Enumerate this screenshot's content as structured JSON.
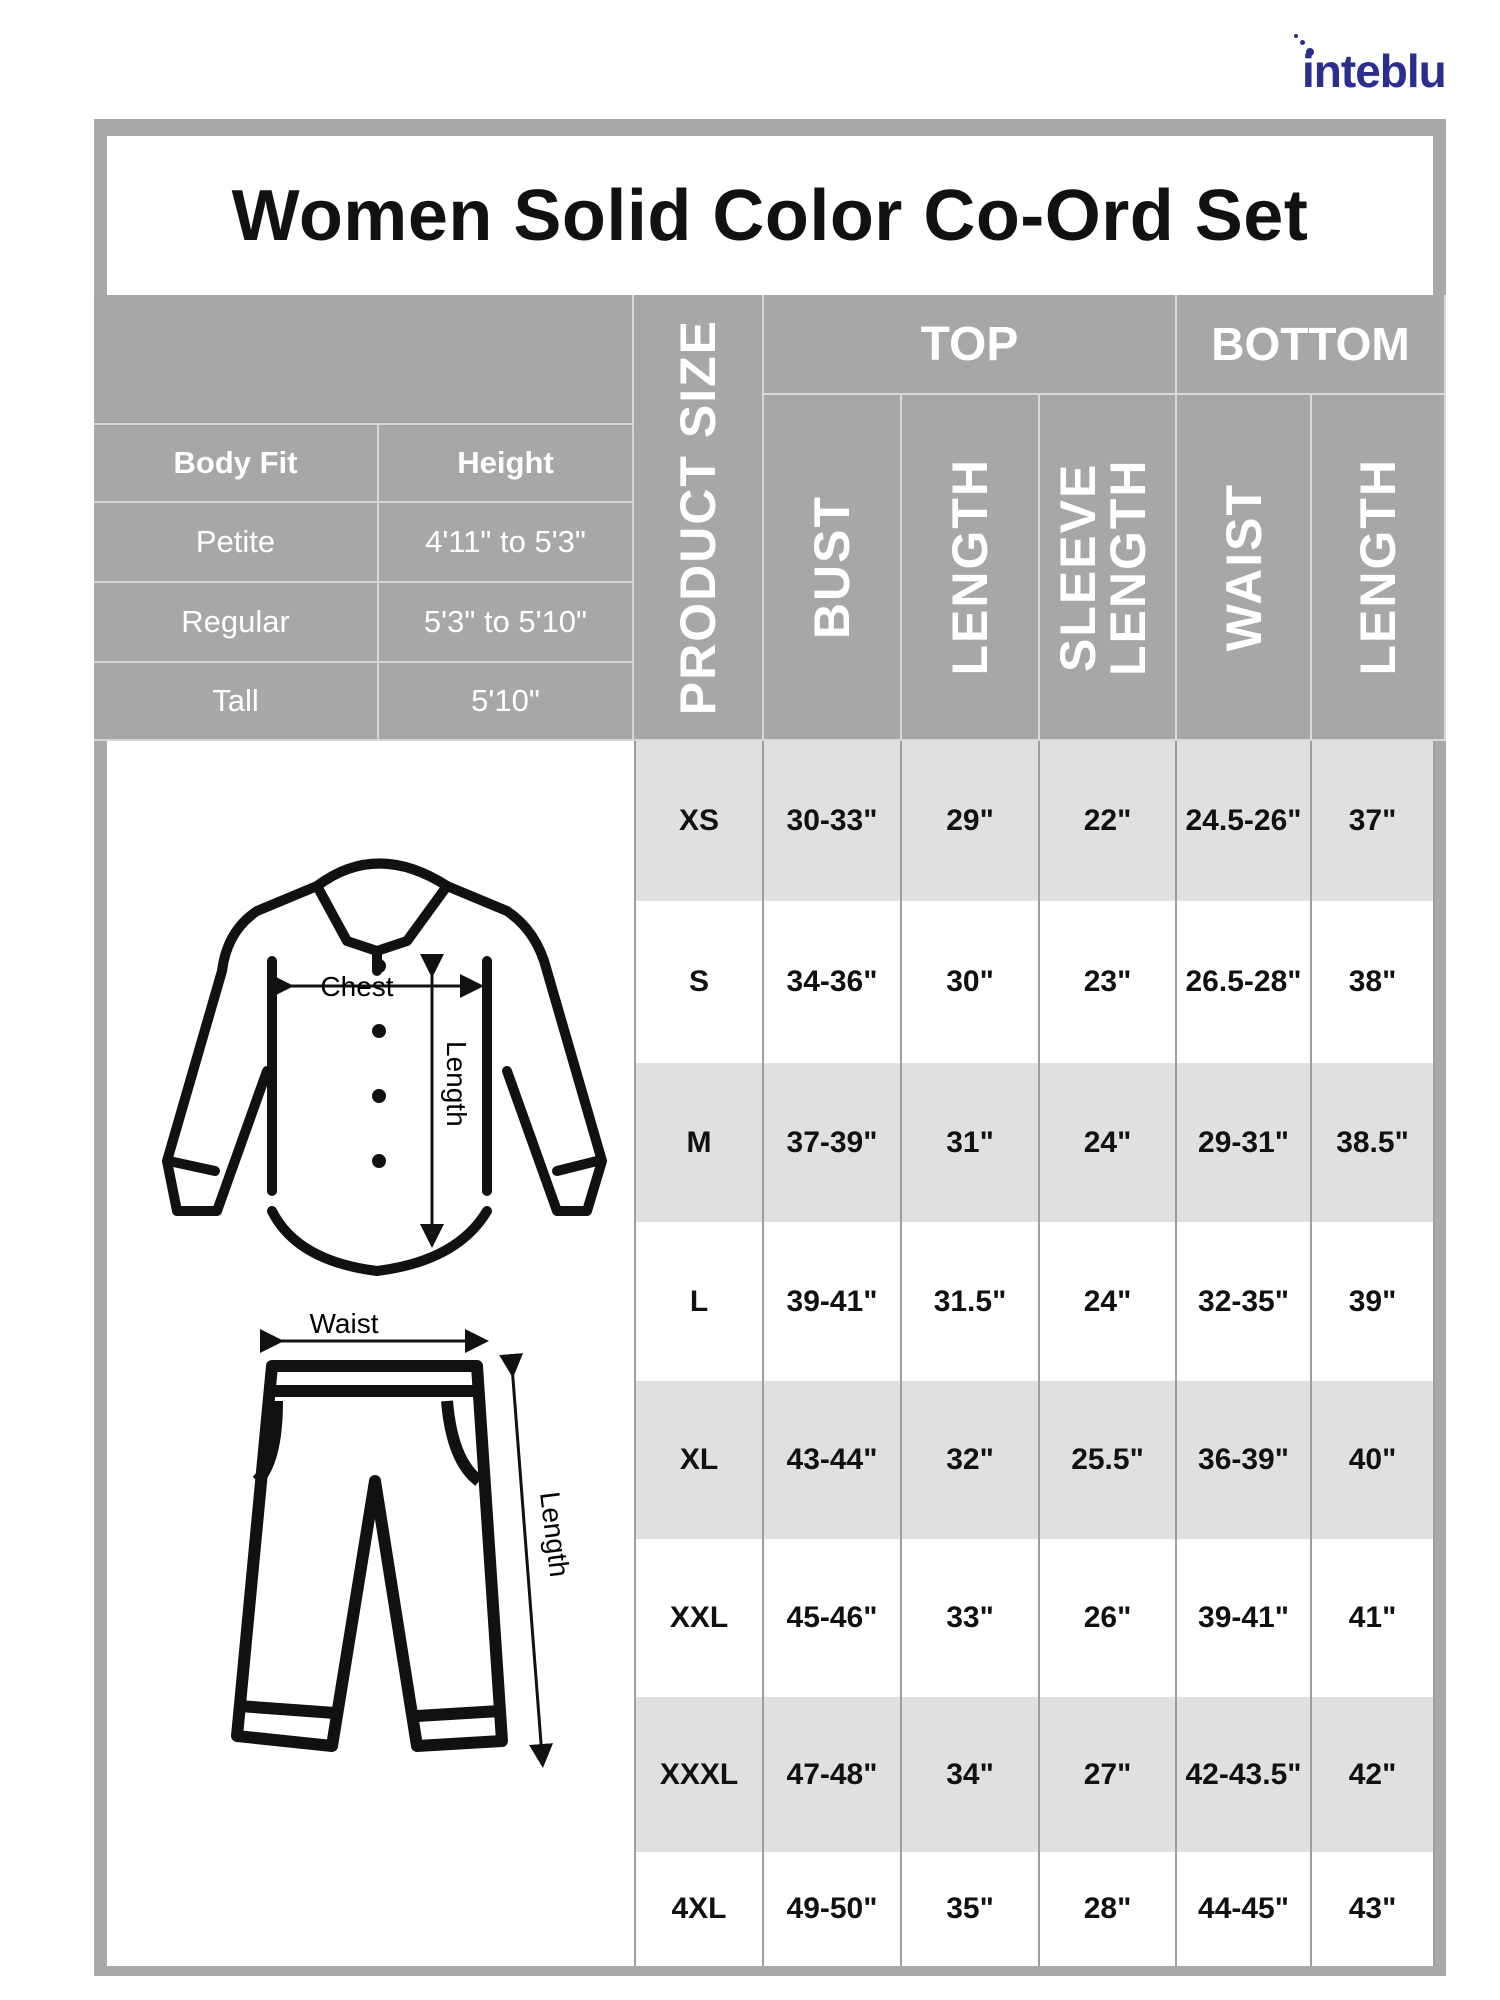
{
  "brand": {
    "logo_text": "inteblu",
    "color": "#2a2f8f"
  },
  "title": "Women Solid Color Co-Ord Set",
  "body_fit": {
    "headers": [
      "Body Fit",
      "Height"
    ],
    "rows": [
      {
        "fit": "Petite",
        "height": "4'11\" to 5'3\""
      },
      {
        "fit": "Regular",
        "height": "5'3\" to 5'10\""
      },
      {
        "fit": "Tall",
        "height": "5'10\""
      }
    ]
  },
  "headers": {
    "product_size": "PRODUCT SIZE",
    "top": "TOP",
    "bottom": "BOTTOM",
    "top_cols": [
      "BUST",
      "LENGTH",
      "SLEEVE LENGTH"
    ],
    "bottom_cols": [
      "WAIST",
      "LENGTH"
    ]
  },
  "illustration": {
    "chest": "Chest",
    "shirt_length": "Length",
    "waist": "Waist",
    "pant_length": "Length"
  },
  "rows": [
    {
      "size": "XS",
      "bust": "30-33\"",
      "length": "29\"",
      "sleeve": "22\"",
      "waist": "24.5-26\"",
      "bottom_length": "37\""
    },
    {
      "size": "S",
      "bust": "34-36\"",
      "length": "30\"",
      "sleeve": "23\"",
      "waist": "26.5-28\"",
      "bottom_length": "38\""
    },
    {
      "size": "M",
      "bust": "37-39\"",
      "length": "31\"",
      "sleeve": "24\"",
      "waist": "29-31\"",
      "bottom_length": "38.5\""
    },
    {
      "size": "L",
      "bust": "39-41\"",
      "length": "31.5\"",
      "sleeve": "24\"",
      "waist": "32-35\"",
      "bottom_length": "39\""
    },
    {
      "size": "XL",
      "bust": "43-44\"",
      "length": "32\"",
      "sleeve": "25.5\"",
      "waist": "36-39\"",
      "bottom_length": "40\""
    },
    {
      "size": "XXL",
      "bust": "45-46\"",
      "length": "33\"",
      "sleeve": "26\"",
      "waist": "39-41\"",
      "bottom_length": "41\""
    },
    {
      "size": "XXXL",
      "bust": "47-48\"",
      "length": "34\"",
      "sleeve": "27\"",
      "waist": "42-43.5\"",
      "bottom_length": "42\""
    },
    {
      "size": "4XL",
      "bust": "49-50\"",
      "length": "35\"",
      "sleeve": "28\"",
      "waist": "44-45\"",
      "bottom_length": "43\""
    }
  ],
  "colors": {
    "header_gray": "#a7a7a7",
    "row_shade": "#e0e0e0",
    "frame": "#a9a9a9"
  }
}
